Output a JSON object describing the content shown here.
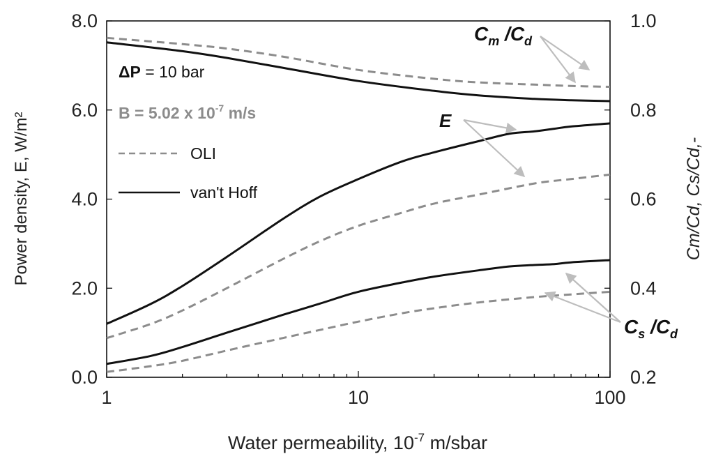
{
  "chart_data": {
    "type": "line",
    "xlabel_prefix": "Water permeability, 10",
    "xlabel_exp": "-7",
    "xlabel_suffix": " m/sbar",
    "xscale": "log",
    "xlim": [
      1,
      100
    ],
    "xticks": [
      1,
      10,
      100
    ],
    "xtick_labels": [
      "1",
      "10",
      "100"
    ],
    "ylabel_left": "Power density, E, W/m²",
    "ylim_left": [
      0,
      8
    ],
    "yticks_left": [
      0,
      2,
      4,
      6,
      8
    ],
    "ytick_labels_left": [
      "0.0",
      "2.0",
      "4.0",
      "6.0",
      "8.0"
    ],
    "ylabel_right": "Cm/Cd,  Cs/Cd,-",
    "ylim_right": [
      0.2,
      1.0
    ],
    "yticks_right": [
      0.2,
      0.4,
      0.6,
      0.8,
      1.0
    ],
    "ytick_labels_right": [
      "0.2",
      "0.4",
      "0.6",
      "0.8",
      "1.0"
    ],
    "grid": false,
    "legend_position": "top-left",
    "legend": [
      {
        "label": "OLI",
        "style": "dashed",
        "color": "#8c8c8c"
      },
      {
        "label": "van't Hoff",
        "style": "solid",
        "color": "#111111"
      }
    ],
    "annotations": {
      "dp_prefix": "ΔP",
      "dp_rest": " = 10 bar",
      "b_text": "B = 5.02 x 10",
      "b_exp": "-7",
      "b_unit": " m/s",
      "e_label": "E",
      "cm_num": "C",
      "cm_sub_m": "m",
      "cm_slash": " /",
      "cm_den": "C",
      "cm_sub_d": "d",
      "cs_num": "C",
      "cs_sub_s": "s",
      "cs_slash": " /",
      "cs_den": "C",
      "cs_sub_d": "d"
    },
    "series": [
      {
        "name": "van't Hoff",
        "group": "Cm/Cd",
        "axis": "right",
        "style": "solid",
        "x": [
          1,
          2,
          3,
          5,
          10,
          20,
          30,
          50,
          70,
          100
        ],
        "y": [
          0.952,
          0.932,
          0.917,
          0.895,
          0.865,
          0.843,
          0.833,
          0.825,
          0.822,
          0.82
        ]
      },
      {
        "name": "OLI",
        "group": "Cm/Cd",
        "axis": "right",
        "style": "dashed",
        "x": [
          1,
          2,
          3,
          5,
          10,
          20,
          30,
          50,
          70,
          100
        ],
        "y": [
          0.962,
          0.948,
          0.938,
          0.92,
          0.89,
          0.87,
          0.862,
          0.857,
          0.854,
          0.852
        ]
      },
      {
        "name": "van't Hoff",
        "group": "E",
        "axis": "left",
        "style": "solid",
        "x": [
          1,
          1.5,
          2,
          3,
          5,
          7,
          10,
          15,
          20,
          30,
          40,
          50,
          60,
          70,
          100
        ],
        "y": [
          1.2,
          1.65,
          2.05,
          2.7,
          3.55,
          4.05,
          4.45,
          4.85,
          5.05,
          5.3,
          5.47,
          5.52,
          5.58,
          5.63,
          5.7
        ]
      },
      {
        "name": "OLI",
        "group": "E",
        "axis": "left",
        "style": "dashed",
        "x": [
          1,
          1.5,
          2,
          3,
          5,
          7,
          10,
          15,
          20,
          30,
          50,
          70,
          100
        ],
        "y": [
          0.88,
          1.2,
          1.5,
          2.0,
          2.65,
          3.05,
          3.4,
          3.7,
          3.9,
          4.1,
          4.35,
          4.45,
          4.55
        ]
      },
      {
        "name": "van't Hoff",
        "group": "Cs/Cd",
        "axis": "right",
        "style": "solid",
        "x": [
          1,
          1.5,
          2,
          3,
          5,
          7,
          10,
          15,
          20,
          30,
          40,
          50,
          60,
          70,
          100
        ],
        "y": [
          0.23,
          0.248,
          0.268,
          0.3,
          0.34,
          0.365,
          0.392,
          0.413,
          0.426,
          0.44,
          0.449,
          0.452,
          0.454,
          0.458,
          0.463
        ]
      },
      {
        "name": "OLI",
        "group": "Cs/Cd",
        "axis": "right",
        "style": "dashed",
        "x": [
          1,
          1.5,
          2,
          3,
          5,
          7,
          10,
          15,
          20,
          30,
          50,
          70,
          100
        ],
        "y": [
          0.212,
          0.225,
          0.237,
          0.26,
          0.288,
          0.306,
          0.325,
          0.344,
          0.355,
          0.368,
          0.38,
          0.386,
          0.392
        ]
      }
    ]
  }
}
